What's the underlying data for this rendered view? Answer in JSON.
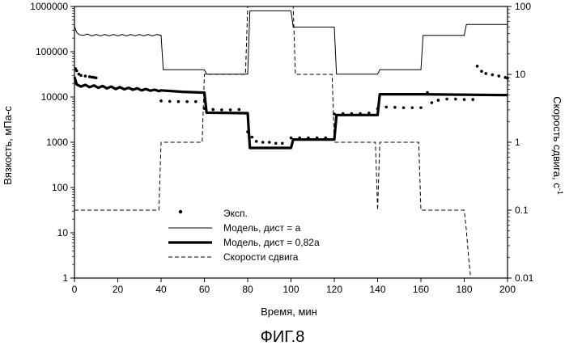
{
  "figure_label": "ФИГ.8",
  "chart_data": {
    "type": "line",
    "title": "",
    "xlabel": "Время, мин",
    "ylabel_left": "Вязкость, мПа-с",
    "ylabel_right": "Скорость сдвига, с",
    "ylabel_right_superscript": "-1",
    "xlim": [
      0,
      200
    ],
    "ylim_left": [
      1,
      1000000
    ],
    "ylim_right": [
      0.01,
      100
    ],
    "y_scale": "log",
    "x_ticks": [
      "0",
      "20",
      "40",
      "60",
      "80",
      "100",
      "120",
      "140",
      "160",
      "180",
      "200"
    ],
    "y_left_ticks": [
      "1",
      "10",
      "100",
      "1000",
      "10000",
      "100000",
      "1000000"
    ],
    "y_right_ticks": [
      "0.01",
      "0.1",
      "1",
      "10",
      "100"
    ],
    "legend_position": "center-left",
    "series": [
      {
        "name": "Эксп.",
        "style": "dots",
        "points": [
          [
            0.5,
            42000
          ],
          [
            1,
            38000
          ],
          [
            2,
            32000
          ],
          [
            3,
            30000
          ],
          [
            5,
            29000
          ],
          [
            7,
            28000
          ],
          [
            8,
            27500
          ],
          [
            9,
            27000
          ],
          [
            10,
            26500
          ],
          [
            40,
            8200
          ],
          [
            44,
            8000
          ],
          [
            48,
            7900
          ],
          [
            52,
            7900
          ],
          [
            56,
            7900
          ],
          [
            60,
            5600
          ],
          [
            64,
            5300
          ],
          [
            68,
            5200
          ],
          [
            72,
            5200
          ],
          [
            76,
            5300
          ],
          [
            80,
            1700
          ],
          [
            82,
            1300
          ],
          [
            84,
            1050
          ],
          [
            87,
            1000
          ],
          [
            90,
            1000
          ],
          [
            93,
            950
          ],
          [
            96,
            950
          ],
          [
            100,
            1250
          ],
          [
            104,
            1250
          ],
          [
            108,
            1250
          ],
          [
            112,
            1250
          ],
          [
            116,
            1250
          ],
          [
            120,
            4200
          ],
          [
            124,
            4300
          ],
          [
            128,
            4300
          ],
          [
            132,
            4300
          ],
          [
            136,
            4400
          ],
          [
            140,
            5500
          ],
          [
            144,
            6000
          ],
          [
            148,
            5900
          ],
          [
            152,
            5800
          ],
          [
            156,
            5800
          ],
          [
            160,
            5800
          ],
          [
            163,
            12500
          ],
          [
            165,
            7500
          ],
          [
            168,
            8500
          ],
          [
            172,
            9000
          ],
          [
            176,
            9000
          ],
          [
            180,
            8800
          ],
          [
            184,
            8800
          ],
          [
            186,
            48000
          ],
          [
            188,
            37000
          ],
          [
            190,
            33000
          ],
          [
            193,
            31000
          ],
          [
            196,
            29000
          ],
          [
            199,
            27000
          ],
          [
            200,
            26000
          ]
        ]
      },
      {
        "name": "Модель, дист = a",
        "style": "thin",
        "points": [
          [
            0,
            360000
          ],
          [
            1,
            270000
          ],
          [
            2,
            240000
          ],
          [
            4,
            230000
          ],
          [
            6,
            245000
          ],
          [
            8,
            225000
          ],
          [
            10,
            240000
          ],
          [
            12,
            225000
          ],
          [
            14,
            240000
          ],
          [
            16,
            225000
          ],
          [
            18,
            240000
          ],
          [
            20,
            225000
          ],
          [
            22,
            240000
          ],
          [
            24,
            225000
          ],
          [
            26,
            240000
          ],
          [
            28,
            225000
          ],
          [
            30,
            240000
          ],
          [
            32,
            225000
          ],
          [
            34,
            240000
          ],
          [
            36,
            225000
          ],
          [
            38,
            240000
          ],
          [
            40,
            230000
          ],
          [
            41,
            40000
          ],
          [
            60,
            40000
          ],
          [
            61,
            32000
          ],
          [
            80,
            32000
          ],
          [
            81,
            800000
          ],
          [
            100,
            800000
          ],
          [
            101,
            350000
          ],
          [
            120,
            350000
          ],
          [
            121,
            32000
          ],
          [
            140,
            32000
          ],
          [
            141,
            40000
          ],
          [
            160,
            40000
          ],
          [
            161,
            230000
          ],
          [
            180,
            230000
          ],
          [
            181,
            400000
          ],
          [
            200,
            400000
          ]
        ]
      },
      {
        "name": "Модель, дист = 0,82a",
        "style": "thick",
        "points": [
          [
            0,
            28000
          ],
          [
            1,
            19000
          ],
          [
            3,
            17000
          ],
          [
            5,
            18500
          ],
          [
            7,
            16500
          ],
          [
            9,
            18000
          ],
          [
            11,
            16000
          ],
          [
            13,
            17500
          ],
          [
            15,
            15500
          ],
          [
            17,
            17000
          ],
          [
            19,
            15000
          ],
          [
            21,
            16500
          ],
          [
            23,
            14800
          ],
          [
            25,
            16000
          ],
          [
            27,
            14500
          ],
          [
            29,
            15500
          ],
          [
            31,
            14000
          ],
          [
            33,
            15000
          ],
          [
            35,
            13800
          ],
          [
            37,
            14500
          ],
          [
            39,
            13500
          ],
          [
            40,
            14000
          ],
          [
            50,
            13000
          ],
          [
            60,
            12500
          ],
          [
            61,
            4500
          ],
          [
            80,
            4400
          ],
          [
            81,
            750
          ],
          [
            100,
            750
          ],
          [
            101,
            1150
          ],
          [
            120,
            1150
          ],
          [
            121,
            4000
          ],
          [
            140,
            4000
          ],
          [
            141,
            11500
          ],
          [
            160,
            11500
          ],
          [
            200,
            11000
          ]
        ]
      },
      {
        "name": "Скорости сдвига",
        "style": "dashed",
        "axis": "right",
        "points": [
          [
            0,
            0.1
          ],
          [
            39,
            0.1
          ],
          [
            40,
            1
          ],
          [
            59,
            1
          ],
          [
            60,
            10
          ],
          [
            79,
            10
          ],
          [
            80,
            100
          ],
          [
            101,
            100
          ],
          [
            102,
            10
          ],
          [
            119,
            10
          ],
          [
            120,
            1
          ],
          [
            139,
            1
          ],
          [
            140,
            0.1
          ],
          [
            141,
            1
          ],
          [
            159,
            1
          ],
          [
            160,
            0.1
          ],
          [
            180,
            0.1
          ],
          [
            181,
            0.05
          ],
          [
            182,
            0.02
          ],
          [
            183,
            0.01
          ]
        ]
      }
    ]
  }
}
